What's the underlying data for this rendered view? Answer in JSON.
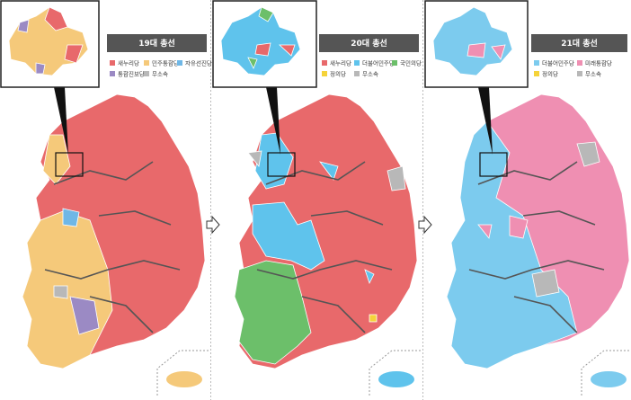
{
  "panels": [
    {
      "title": "19대 총선",
      "legend": [
        {
          "label": "새누리당",
          "color": "#e8696b"
        },
        {
          "label": "민주통합당",
          "color": "#f5c97a"
        },
        {
          "label": "자유선진당",
          "color": "#6fb7e6"
        },
        {
          "label": "통합진보당",
          "color": "#9b8ac4"
        },
        {
          "label": "무소속",
          "color": "#b8b8b8"
        }
      ]
    },
    {
      "title": "20대 총선",
      "legend": [
        {
          "label": "새누리당",
          "color": "#e8696b"
        },
        {
          "label": "더불어민주당",
          "color": "#5fc3ec"
        },
        {
          "label": "국민의당",
          "color": "#6cbf6a"
        },
        {
          "label": "정의당",
          "color": "#f5d33a"
        },
        {
          "label": "무소속",
          "color": "#b8b8b8"
        }
      ]
    },
    {
      "title": "21대 총선",
      "legend": [
        {
          "label": "더불어민주당",
          "color": "#7ccbee"
        },
        {
          "label": "미래통합당",
          "color": "#ef8fb2"
        },
        {
          "label": "정의당",
          "color": "#f5d33a"
        },
        {
          "label": "무소속",
          "color": "#b8b8b8"
        }
      ]
    }
  ]
}
